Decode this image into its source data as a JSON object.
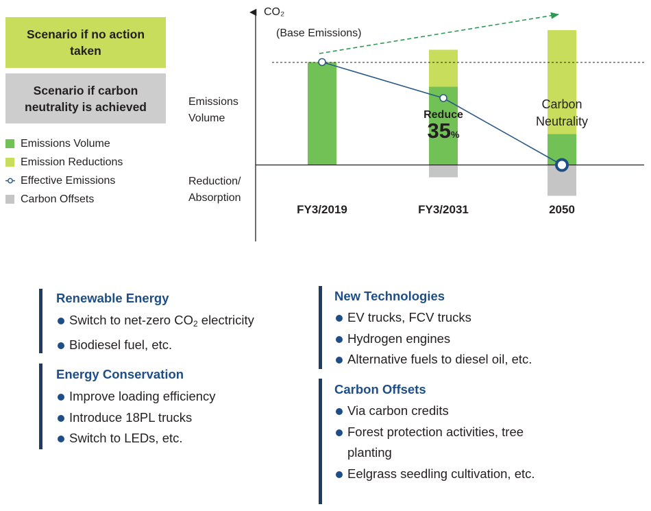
{
  "scenario_boxes": {
    "no_action": "Scenario if no action taken",
    "neutrality": "Scenario if carbon neutrality is achieved"
  },
  "legend": [
    {
      "label": "Emissions Volume",
      "kind": "square",
      "color": "#72c157"
    },
    {
      "label": "Emission Reductions",
      "kind": "square",
      "color": "#c8dd5b"
    },
    {
      "label": "Effective Emissions",
      "kind": "line-marker",
      "color": "#2b5a86"
    },
    {
      "label": "Carbon Offsets",
      "kind": "square",
      "color": "#c5c5c6"
    }
  ],
  "axis": {
    "y_title": "CO₂",
    "base_emissions": "(Base Emissions)",
    "upper_label": "Emissions Volume",
    "lower_label": "Reduction/ Absorption"
  },
  "chart_data": {
    "type": "bar",
    "categories": [
      "FY3/2019",
      "FY3/2031",
      "2050"
    ],
    "series": [
      {
        "name": "Emissions Volume",
        "values": [
          100,
          76,
          30
        ]
      },
      {
        "name": "Emission Reductions",
        "values": [
          0,
          36,
          101
        ]
      },
      {
        "name": "Carbon Offsets",
        "values": [
          0,
          -12,
          -30
        ]
      },
      {
        "name": "Effective Emissions",
        "values": [
          100,
          65,
          0
        ]
      }
    ],
    "ylim": [
      -45,
      150
    ],
    "annotations": {
      "reduce_label": "Reduce",
      "reduce_value": "35",
      "reduce_unit": "%",
      "neutrality_label": "Carbon Neutrality"
    },
    "colors": {
      "emissions": "#72c157",
      "reductions": "#c8dd5b",
      "offsets": "#c5c5c6",
      "effective_line": "#2b5a86",
      "trend_arrow": "#2c9a55"
    }
  },
  "measures": [
    {
      "title": "Renewable Energy",
      "items": [
        "Switch to net-zero CO₂ electricity",
        "Biodiesel fuel, etc."
      ]
    },
    {
      "title": "Energy Conservation",
      "items": [
        "Improve loading efficiency",
        "Introduce 18PL trucks",
        "Switch to LEDs, etc."
      ]
    },
    {
      "title": "New Technologies",
      "items": [
        "EV trucks, FCV trucks",
        "Hydrogen engines",
        "Alternative fuels to diesel oil, etc."
      ]
    },
    {
      "title": "Carbon Offsets",
      "items": [
        "Via carbon credits",
        "Forest protection activities, tree planting",
        "Eelgrass seedling cultivation, etc."
      ]
    }
  ]
}
